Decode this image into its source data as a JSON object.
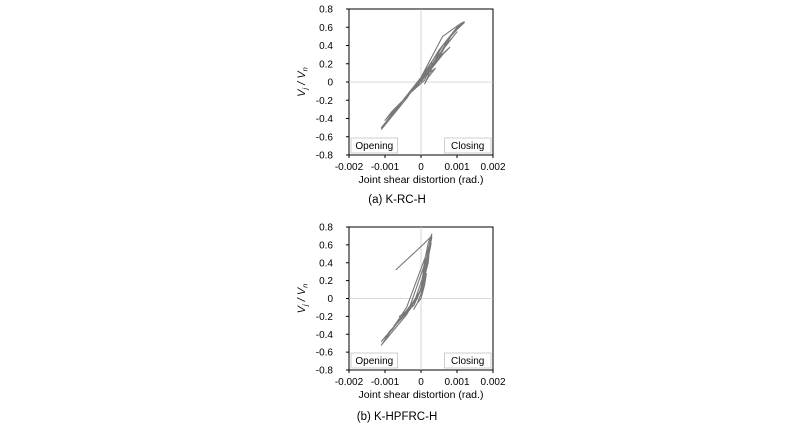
{
  "colors": {
    "curve": "#777777",
    "zero_line": "#cccccc",
    "frame": "#000000",
    "background": "#ffffff"
  },
  "chart_data": [
    {
      "type": "line",
      "caption": "(a)  K-RC-H",
      "xlabel": "Joint shear distortion (rad.)",
      "ylabel_main": "V",
      "ylabel_sub1": "j",
      "ylabel_div": " / V",
      "ylabel_sub2": "n",
      "xlim": [
        -0.002,
        0.002
      ],
      "ylim": [
        -0.8,
        0.8
      ],
      "xticks": [
        "-0.002",
        "-0.001",
        "0",
        "0.001",
        "0.002"
      ],
      "yticks": [
        "0.8",
        "0.6",
        "0.4",
        "0.2",
        "0",
        "-0.2",
        "-0.4",
        "-0.6",
        "-0.8"
      ],
      "grid": false,
      "zero_lines": true,
      "annotations": {
        "left": "Opening",
        "right": "Closing"
      },
      "series": [
        {
          "x": [
            0,
            0.0001,
            0.0003,
            0.0004,
            0.0002,
            0.0001,
            0.0003,
            0.0006,
            0.0008,
            0.0003,
            0.0001,
            -0.0001,
            -0.0003,
            -0.0004,
            -0.0001,
            0,
            0.0004,
            0.0008,
            0.001,
            0.0005,
            0.0001,
            -0.0003,
            -0.0006,
            -0.0008,
            -0.0002,
            0,
            0.0005,
            0.0009,
            0.0011,
            0.0006,
            0.0002,
            -0.0003,
            -0.0008,
            -0.001,
            -0.0003,
            0,
            0.0006,
            0.001,
            0.0012,
            0.0008,
            0.0003,
            -0.0004,
            -0.0009,
            -0.0011,
            -0.0004,
            0,
            0.0007,
            0.0011,
            0.0012,
            0.0009,
            0.0004,
            -0.0004,
            -0.0009,
            -0.0011,
            -0.0004,
            0,
            0.0006,
            0.0011,
            0.0012
          ],
          "y": [
            0,
            0.05,
            0.12,
            0.15,
            0.05,
            -0.02,
            0.15,
            0.3,
            0.38,
            0.2,
            0.02,
            -0.05,
            -0.12,
            -0.15,
            -0.05,
            0.02,
            0.25,
            0.45,
            0.55,
            0.3,
            0.05,
            -0.1,
            -0.25,
            -0.32,
            -0.08,
            0.03,
            0.35,
            0.55,
            0.62,
            0.4,
            0.1,
            -0.12,
            -0.32,
            -0.42,
            -0.12,
            0.05,
            0.4,
            0.6,
            0.65,
            0.5,
            0.15,
            -0.15,
            -0.4,
            -0.5,
            -0.15,
            0.05,
            0.45,
            0.62,
            0.66,
            0.55,
            0.2,
            -0.15,
            -0.42,
            -0.52,
            -0.18,
            0.05,
            0.5,
            0.64,
            0.66
          ]
        }
      ]
    },
    {
      "type": "line",
      "caption": "(b)  K-HPFRC-H",
      "xlabel": "Joint shear distortion (rad.)",
      "ylabel_main": "V",
      "ylabel_sub1": "j",
      "ylabel_div": " / V",
      "ylabel_sub2": "n",
      "xlim": [
        -0.002,
        0.002
      ],
      "ylim": [
        -0.8,
        0.8
      ],
      "xticks": [
        "-0.002",
        "-0.001",
        "0",
        "0.001",
        "0.002"
      ],
      "yticks": [
        "0.8",
        "0.6",
        "0.4",
        "0.2",
        "0",
        "-0.2",
        "-0.4",
        "-0.6",
        "-0.8"
      ],
      "grid": false,
      "zero_lines": true,
      "annotations": {
        "left": "Opening",
        "right": "Closing"
      },
      "series": [
        {
          "x": [
            0,
            5e-05,
            0.0001,
            0.00015,
            0.0001,
            0,
            -0.0001,
            -0.0002,
            -0.0001,
            0,
            0.0001,
            0.0002,
            0.00022,
            0.0001,
            -0.0001,
            -0.0004,
            -0.0006,
            -0.0002,
            0,
            0.0001,
            0.00025,
            0.00028,
            0.00015,
            -0.0002,
            -0.0006,
            -0.0009,
            -0.0003,
            0,
            0.0001,
            0.00025,
            0.0003,
            0.0002,
            -0.0003,
            -0.0008,
            -0.0011,
            -0.0004,
            0,
            0.00012,
            0.00028,
            0.0003,
            0.0002,
            -0.0004,
            -0.0009,
            -0.0011,
            -0.0004,
            0,
            0.0001,
            0.0002,
            0.00028,
            0.0003
          ],
          "y": [
            0,
            0.1,
            0.2,
            0.28,
            0.15,
            0,
            -0.05,
            -0.12,
            -0.05,
            0.05,
            0.25,
            0.4,
            0.48,
            0.25,
            0,
            -0.15,
            -0.2,
            -0.08,
            0.1,
            0.3,
            0.55,
            0.62,
            0.35,
            -0.05,
            -0.25,
            -0.38,
            -0.12,
            0.1,
            0.35,
            0.6,
            0.68,
            0.5,
            -0.08,
            -0.35,
            -0.48,
            -0.15,
            0.1,
            0.4,
            0.65,
            0.72,
            0.55,
            -0.1,
            -0.4,
            -0.52,
            -0.18,
            0.1,
            0.42,
            0.62,
            0.7,
            0.72
          ]
        },
        {
          "x": [
            -0.0007,
            5e-05,
            0.0003
          ],
          "y": [
            0.32,
            0.6,
            0.7
          ]
        }
      ]
    }
  ]
}
